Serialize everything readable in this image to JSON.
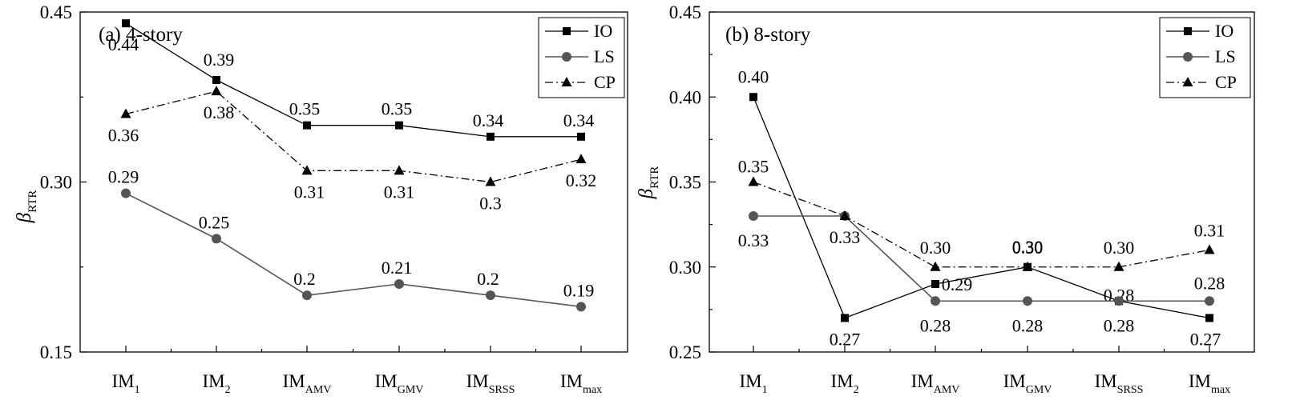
{
  "colors": {
    "IO": "#000000",
    "LS": "#555555",
    "CP": "#000000",
    "marker_LS": "#555555"
  },
  "chart_data": [
    {
      "type": "line",
      "title": "(a) 4-story",
      "ylabel_main": "β",
      "ylabel_sub": "RTR",
      "ylim": [
        0.15,
        0.45
      ],
      "yticks": [
        "0.15",
        "0.30",
        "0.45"
      ],
      "categories": [
        {
          "main": "IM",
          "sub": "1"
        },
        {
          "main": "IM",
          "sub": "2"
        },
        {
          "main": "IM",
          "sub": "AMV"
        },
        {
          "main": "IM",
          "sub": "GMV"
        },
        {
          "main": "IM",
          "sub": "SRSS"
        },
        {
          "main": "IM",
          "sub": "max"
        }
      ],
      "legend": [
        "IO",
        "LS",
        "CP"
      ],
      "series": [
        {
          "name": "IO",
          "values": [
            0.44,
            0.39,
            0.35,
            0.35,
            0.34,
            0.34
          ],
          "labels": [
            "0.44",
            "0.39",
            "0.35",
            "0.35",
            "0.34",
            "0.34"
          ]
        },
        {
          "name": "LS",
          "values": [
            0.29,
            0.25,
            0.2,
            0.21,
            0.2,
            0.19
          ],
          "labels": [
            "0.29",
            "0.25",
            "0.2",
            "0.21",
            "0.2",
            "0.19"
          ]
        },
        {
          "name": "CP",
          "values": [
            0.36,
            0.38,
            0.31,
            0.31,
            0.3,
            0.32
          ],
          "labels": [
            "0.36",
            "0.38",
            "0.31",
            "0.31",
            "0.3",
            "0.32"
          ]
        }
      ]
    },
    {
      "type": "line",
      "title": "(b) 8-story",
      "ylabel_main": "β",
      "ylabel_sub": "RTR",
      "ylim": [
        0.25,
        0.45
      ],
      "yticks": [
        "0.25",
        "0.30",
        "0.35",
        "0.40",
        "0.45"
      ],
      "categories": [
        {
          "main": "IM",
          "sub": "1"
        },
        {
          "main": "IM",
          "sub": "2"
        },
        {
          "main": "IM",
          "sub": "AMV"
        },
        {
          "main": "IM",
          "sub": "GMV"
        },
        {
          "main": "IM",
          "sub": "SRSS"
        },
        {
          "main": "IM",
          "sub": "max"
        }
      ],
      "legend": [
        "IO",
        "LS",
        "CP"
      ],
      "series": [
        {
          "name": "IO",
          "values": [
            0.4,
            0.27,
            0.29,
            0.3,
            0.28,
            0.27
          ],
          "labels": [
            "0.40",
            "0.27",
            "0.29",
            "0.30",
            "0.28",
            "0.27"
          ]
        },
        {
          "name": "LS",
          "values": [
            0.33,
            0.33,
            0.28,
            0.28,
            0.28,
            0.28
          ],
          "labels": [
            "0.33",
            "0.33",
            "0.28",
            "0.28",
            "0.28",
            "0.28"
          ]
        },
        {
          "name": "CP",
          "values": [
            0.35,
            0.33,
            0.3,
            0.3,
            0.3,
            0.31
          ],
          "labels": [
            "0.35",
            "",
            "0.30",
            "0.30",
            "0.30",
            "0.31"
          ]
        }
      ]
    }
  ]
}
